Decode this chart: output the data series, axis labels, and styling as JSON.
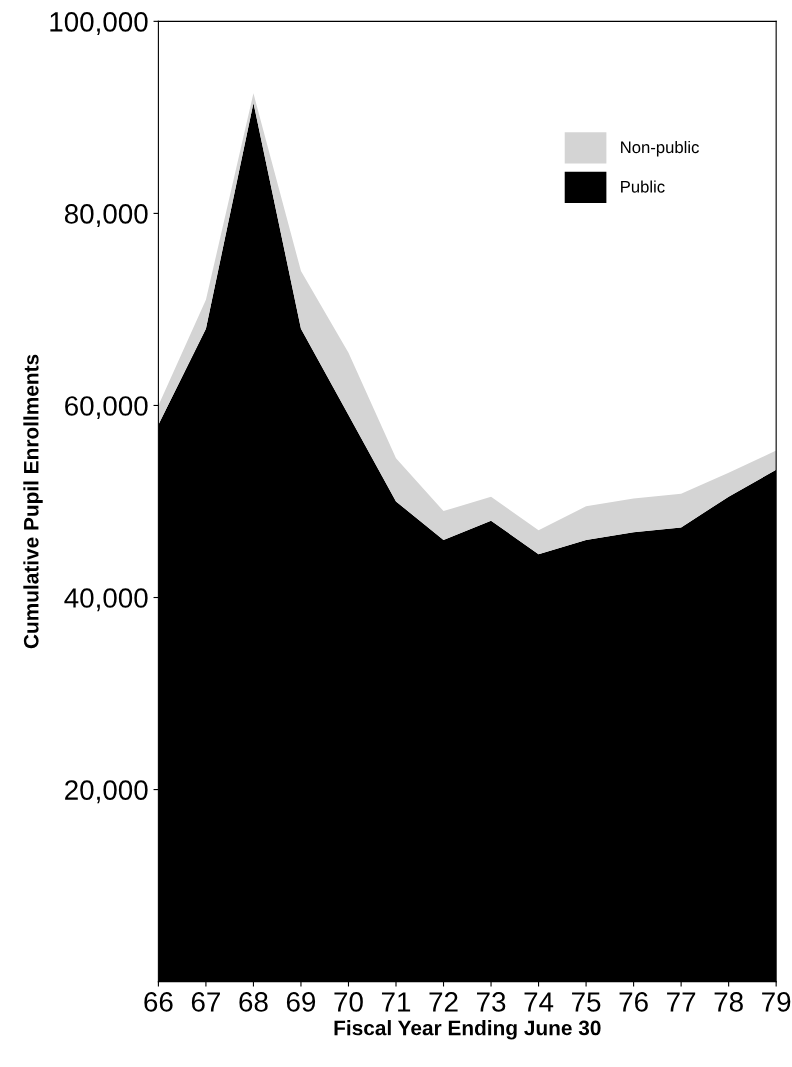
{
  "chart_data": {
    "type": "area",
    "stacked": true,
    "xlabel": "Fiscal Year Ending June 30",
    "ylabel": "Cumulative Pupil Enrollments",
    "categories": [
      "66",
      "67",
      "68",
      "69",
      "70",
      "71",
      "72",
      "73",
      "74",
      "75",
      "76",
      "77",
      "78",
      "79"
    ],
    "series": [
      {
        "name": "Public",
        "color": "#000000",
        "values": [
          58000,
          68000,
          91500,
          68000,
          59000,
          50000,
          46000,
          48000,
          44500,
          46000,
          46800,
          47300,
          50500,
          53300
        ]
      },
      {
        "name": "Non-public",
        "color": "#d4d4d4",
        "values": [
          2000,
          3000,
          1000,
          6000,
          6500,
          4500,
          3000,
          2500,
          2500,
          3500,
          3500,
          3500,
          2500,
          2000
        ]
      }
    ],
    "ylim": [
      0,
      100000
    ],
    "yticks": [
      {
        "value": 20000,
        "label": "20,000"
      },
      {
        "value": 40000,
        "label": "40,000"
      },
      {
        "value": 60000,
        "label": "60,000"
      },
      {
        "value": 80000,
        "label": "80,000"
      },
      {
        "value": 100000,
        "label": "100,000"
      }
    ],
    "grid": false,
    "legend": "top right"
  }
}
